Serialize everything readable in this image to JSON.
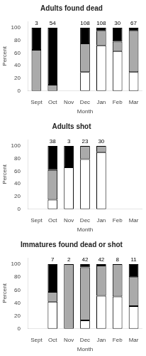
{
  "chart_data": [
    {
      "type": "bar",
      "title": "Adults found dead",
      "categories": [
        "Sept",
        "Oct",
        "Nov",
        "Dec",
        "Jan",
        "Feb",
        "Mar"
      ],
      "series": [
        {
          "color": "#ffffff",
          "values": [
            0,
            0,
            0,
            30,
            72,
            63,
            30
          ]
        },
        {
          "color": "#aaaaaa",
          "values": [
            65,
            10,
            0,
            45,
            23,
            15,
            65
          ]
        },
        {
          "color": "#000000",
          "values": [
            35,
            90,
            0,
            25,
            5,
            22,
            5
          ]
        }
      ],
      "sample_sizes": [
        3,
        54,
        null,
        108,
        108,
        30,
        67
      ],
      "xlabel": "Month",
      "ylabel": "Percent",
      "ylim": [
        0,
        110
      ],
      "yticks": [
        0,
        20,
        40,
        60,
        80,
        100
      ],
      "stacked": true,
      "grid": false
    },
    {
      "type": "bar",
      "title": "Adults shot",
      "categories": [
        "Sept",
        "Oct",
        "Nov",
        "Dec",
        "Jan",
        "Feb",
        "Mar"
      ],
      "series": [
        {
          "color": "#ffffff",
          "values": [
            0,
            15,
            66,
            79,
            90,
            0,
            0
          ]
        },
        {
          "color": "#aaaaaa",
          "values": [
            0,
            47,
            0,
            21,
            10,
            0,
            0
          ]
        },
        {
          "color": "#000000",
          "values": [
            0,
            38,
            34,
            0,
            0,
            0,
            0
          ]
        }
      ],
      "sample_sizes": [
        null,
        38,
        3,
        23,
        30,
        null,
        null
      ],
      "xlabel": "Month",
      "ylabel": "Percent",
      "ylim": [
        0,
        110
      ],
      "yticks": [
        0,
        20,
        40,
        60,
        80,
        100
      ],
      "stacked": true,
      "grid": false
    },
    {
      "type": "bar",
      "title": "Immatures found dead or shot",
      "categories": [
        "Sept",
        "Oct",
        "Nov",
        "Dec",
        "Jan",
        "Feb",
        "Mar"
      ],
      "series": [
        {
          "color": "#ffffff",
          "values": [
            0,
            42,
            0,
            13,
            51,
            50,
            35
          ]
        },
        {
          "color": "#aaaaaa",
          "values": [
            0,
            15,
            100,
            82,
            47,
            50,
            45
          ]
        },
        {
          "color": "#000000",
          "values": [
            0,
            43,
            0,
            5,
            2,
            0,
            20
          ]
        }
      ],
      "sample_sizes": [
        null,
        7,
        2,
        42,
        42,
        8,
        11
      ],
      "xlabel": "Month",
      "ylabel": "Percent",
      "ylim": [
        0,
        110
      ],
      "yticks": [
        0,
        20,
        40,
        60,
        80,
        100
      ],
      "stacked": true,
      "grid": false
    }
  ]
}
